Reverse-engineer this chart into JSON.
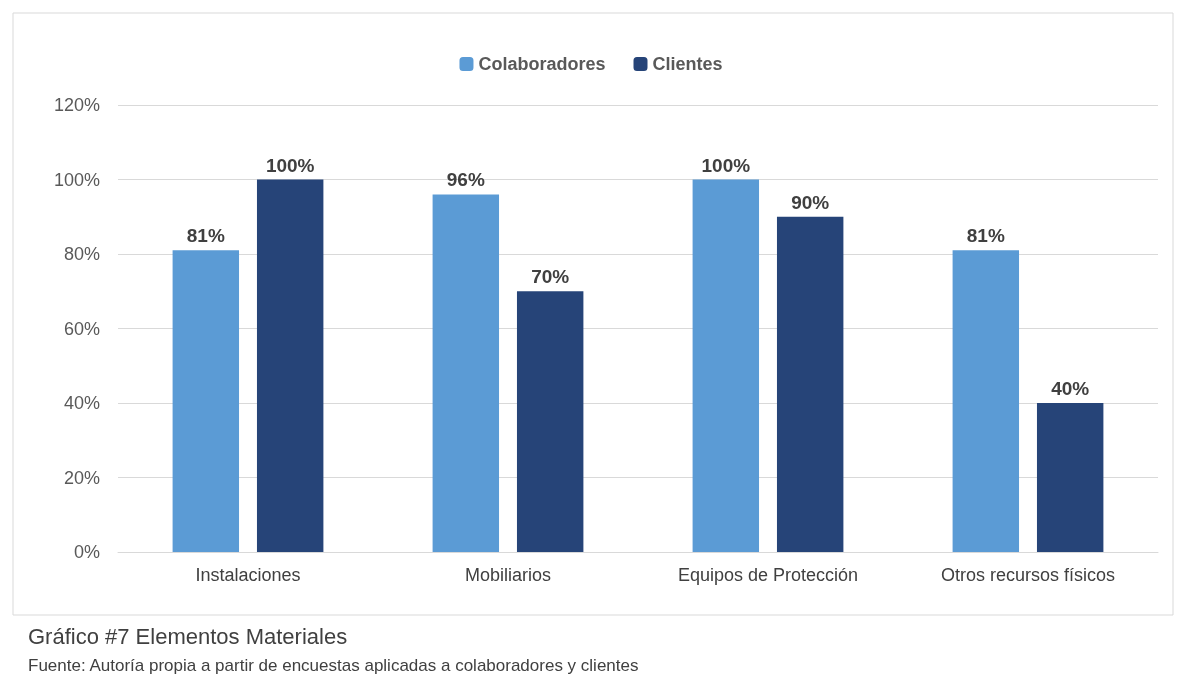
{
  "chart_data": {
    "type": "bar",
    "title": "Gráfico #7 Elementos Materiales",
    "annotations": [
      "Fuente: Autoría propia a partir de encuestas aplicadas a colaboradores y clientes"
    ],
    "categories": [
      "Instalaciones",
      "Mobiliarios",
      "Equipos de Protección",
      "Otros recursos físicos"
    ],
    "series": [
      {
        "name": "Colaboradores",
        "color": "#5b9bd5",
        "values": [
          81,
          96,
          100,
          81
        ],
        "value_labels": [
          "81%",
          "96%",
          "100%",
          "81%"
        ]
      },
      {
        "name": "Clientes",
        "color": "#264478",
        "values": [
          100,
          70,
          90,
          40
        ],
        "value_labels": [
          "100%",
          "70%",
          "90%",
          "40%"
        ]
      }
    ],
    "ylim": [
      0,
      120
    ],
    "yticks": [
      {
        "value": 0,
        "label": "0%"
      },
      {
        "value": 20,
        "label": "20%"
      },
      {
        "value": 40,
        "label": "40%"
      },
      {
        "value": 60,
        "label": "60%"
      },
      {
        "value": 80,
        "label": "80%"
      },
      {
        "value": 100,
        "label": "100%"
      },
      {
        "value": 120,
        "label": "120%"
      }
    ],
    "grid": true,
    "legend": "top"
  }
}
